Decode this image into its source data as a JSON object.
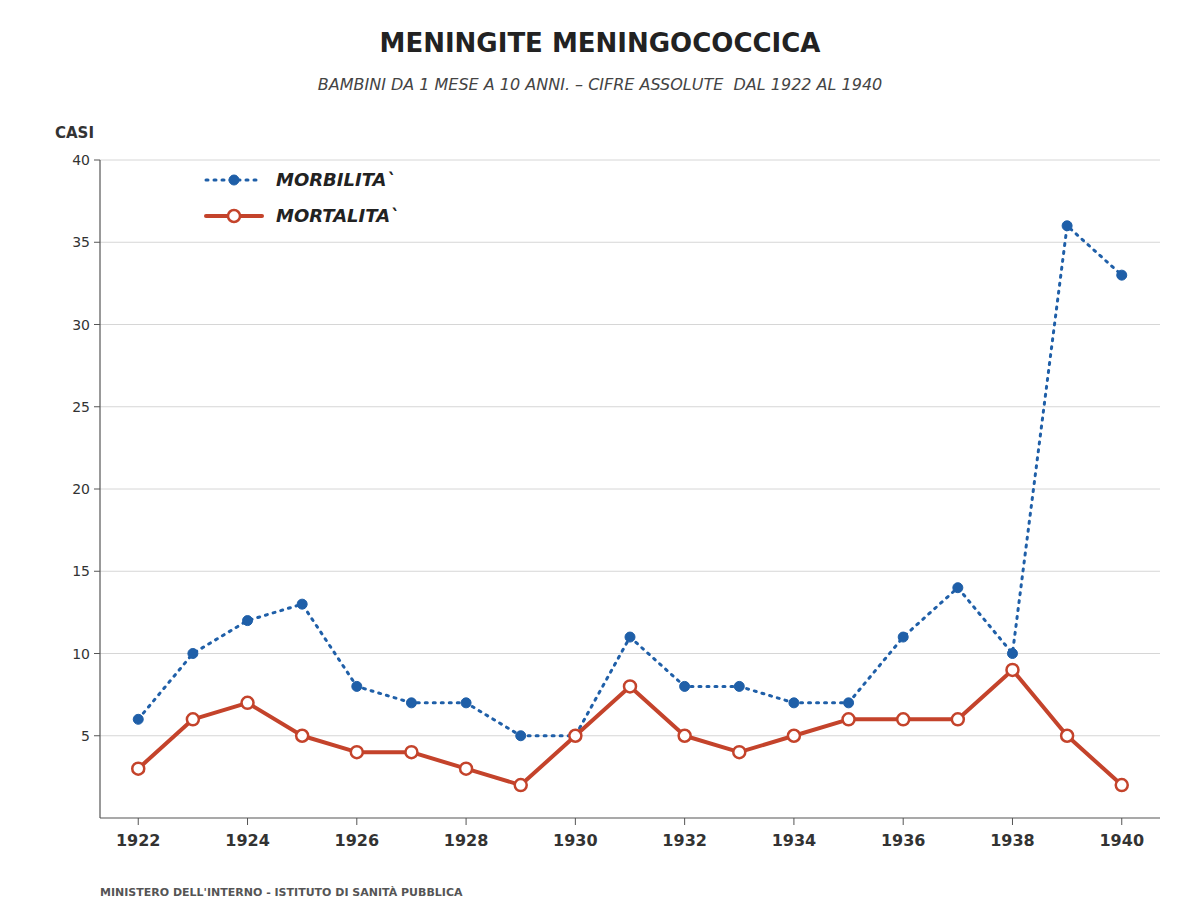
{
  "chart_data": {
    "type": "line",
    "title": "MENINGITE MENINGOCOCCICA",
    "subtitle": "BAMBINI DA 1 MESE A 10 ANNI. – CIFRE ASSOLUTE  DAL 1922 AL 1940",
    "ylabel": "CASI",
    "annotations": [
      "MINISTERO DELL'INTERNO - ISTITUTO DI SANITÀ PUBBLICA"
    ],
    "x": [
      1922,
      1923,
      1924,
      1925,
      1926,
      1927,
      1928,
      1929,
      1930,
      1931,
      1932,
      1933,
      1934,
      1935,
      1936,
      1937,
      1938,
      1939,
      1940
    ],
    "series": [
      {
        "name": "MORBILITA`",
        "line_style": "dotted",
        "marker": "filled-circle",
        "values": [
          6,
          10,
          12,
          13,
          8,
          7,
          7,
          5,
          5,
          11,
          8,
          8,
          7,
          7,
          11,
          14,
          10,
          36,
          33
        ]
      },
      {
        "name": "MORTALITA`",
        "line_style": "solid",
        "marker": "open-circle",
        "values": [
          3,
          6,
          7,
          5,
          4,
          4,
          3,
          2,
          5,
          8,
          5,
          4,
          5,
          6,
          6,
          6,
          9,
          5,
          2
        ]
      }
    ],
    "xlim": [
      1921.3,
      1940.7
    ],
    "xticks": [
      1922,
      1924,
      1926,
      1928,
      1930,
      1932,
      1934,
      1936,
      1938,
      1940
    ],
    "ylim": [
      0,
      40
    ],
    "yticks": [
      5,
      10,
      15,
      20,
      25,
      30,
      35,
      40
    ],
    "grid": true,
    "legend": "upper left"
  }
}
